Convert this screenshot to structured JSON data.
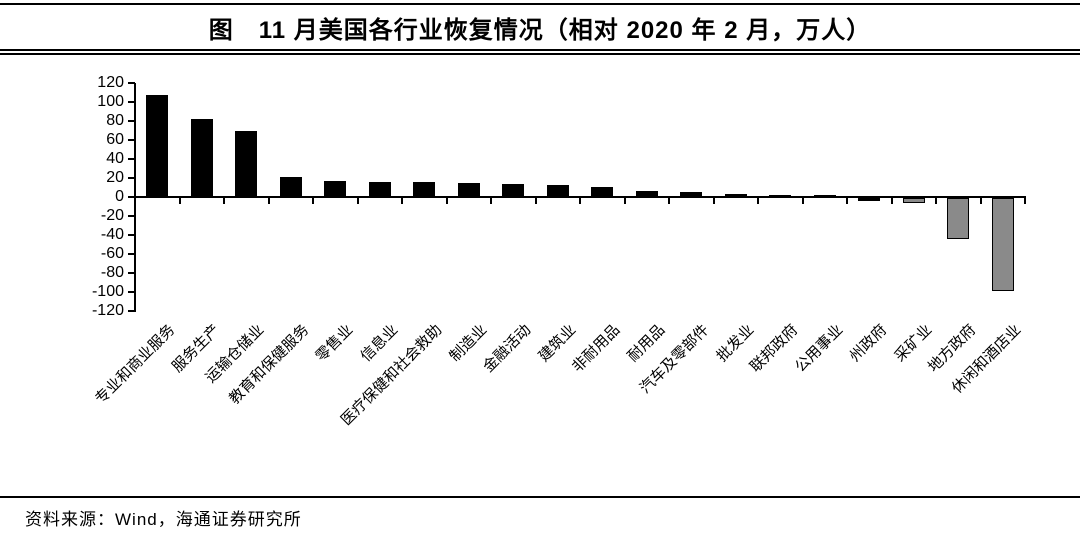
{
  "header": {
    "title": "图　11 月美国各行业恢复情况（相对 2020 年 2 月，万人）"
  },
  "footer": {
    "source": "资料来源：Wind，海通证券研究所"
  },
  "chart_data": {
    "type": "bar",
    "title": "图　11 月美国各行业恢复情况（相对 2020 年 2 月，万人）",
    "unit": "万人",
    "categories": [
      "专业和商业服务",
      "服务生产",
      "运输仓储业",
      "教育和保健服务",
      "零售业",
      "信息业",
      "医疗保健和社会救助",
      "制造业",
      "金融活动",
      "建筑业",
      "非耐用品",
      "耐用品",
      "汽车及零部件",
      "批发业",
      "联邦政府",
      "公用事业",
      "州政府",
      "采矿业",
      "地方政府",
      "休闲和酒店业"
    ],
    "values": [
      107,
      82,
      70,
      21,
      17,
      16,
      16,
      15,
      14,
      13,
      11,
      6,
      5,
      3,
      2,
      1,
      -3,
      -5,
      -43,
      -98
    ],
    "bar_colors": [
      "#000000",
      "#000000",
      "#000000",
      "#000000",
      "#000000",
      "#000000",
      "#000000",
      "#000000",
      "#000000",
      "#000000",
      "#000000",
      "#000000",
      "#000000",
      "#000000",
      "#000000",
      "#000000",
      "#000000",
      "#8a8a8a",
      "#8a8a8a",
      "#8a8a8a"
    ],
    "positive_color": "#000000",
    "negative_highlight_color": "#8a8a8a",
    "yticks": [
      120,
      100,
      80,
      60,
      40,
      20,
      0,
      -20,
      -40,
      -60,
      -80,
      -100,
      -120
    ],
    "ylim": [
      -120,
      120
    ],
    "xlabel": "",
    "ylabel": "",
    "grid": false,
    "legend": "none",
    "source": "资料来源：Wind，海通证券研究所"
  }
}
